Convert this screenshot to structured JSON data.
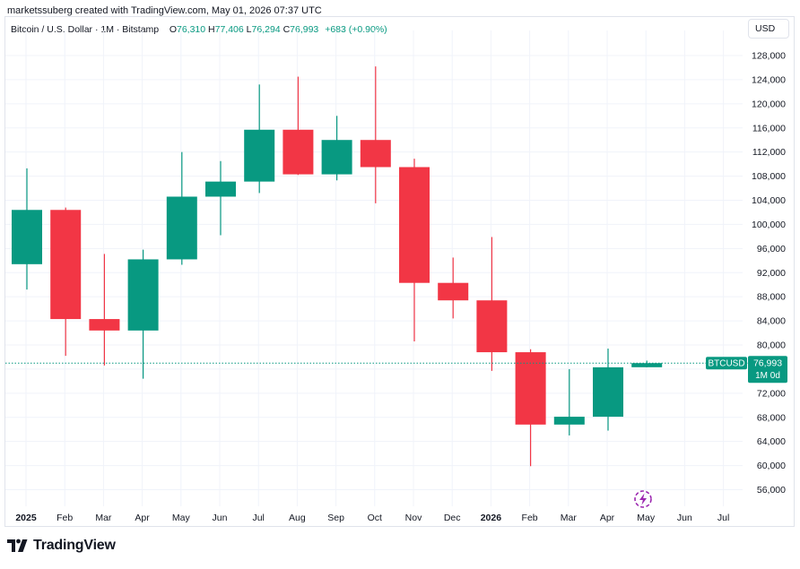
{
  "caption": "marketssuberg created with TradingView.com, May 01, 2026 07:37 UTC",
  "legend": {
    "symbol_text": "Bitcoin / U.S. Dollar · 1M · Bitstamp",
    "open_label": "O",
    "open_value": "76,310",
    "high_label": "H",
    "high_value": "77,406",
    "low_label": "L",
    "low_value": "76,294",
    "close_label": "C",
    "close_value": "76,993",
    "change": "+683 (+0.90%)"
  },
  "currency_button": "USD",
  "footer_logo_text": "TradingView",
  "colors": {
    "up": "#089981",
    "down": "#f23645",
    "grid": "#f0f3fa",
    "text": "#131722",
    "price_line": "#089981"
  },
  "chart_data": {
    "type": "candlestick",
    "symbol": "BTCUSD",
    "timeframe": "1M",
    "ylim": [
      53000,
      130000
    ],
    "y_ticks": [
      56000,
      60000,
      64000,
      68000,
      72000,
      76000,
      80000,
      84000,
      88000,
      92000,
      96000,
      100000,
      104000,
      108000,
      112000,
      116000,
      120000,
      124000,
      128000
    ],
    "y_tick_labels": [
      "56,000",
      "60,000",
      "64,000",
      "68,000",
      "72,000",
      "76,000",
      "80,000",
      "84,000",
      "88,000",
      "92,000",
      "96,000",
      "100,000",
      "104,000",
      "108,000",
      "112,000",
      "116,000",
      "120,000",
      "124,000",
      "128,000"
    ],
    "x_labels": [
      {
        "label": "2025",
        "bold": true
      },
      {
        "label": "Feb",
        "bold": false
      },
      {
        "label": "Mar",
        "bold": false
      },
      {
        "label": "Apr",
        "bold": false
      },
      {
        "label": "May",
        "bold": false
      },
      {
        "label": "Jun",
        "bold": false
      },
      {
        "label": "Jul",
        "bold": false
      },
      {
        "label": "Aug",
        "bold": false
      },
      {
        "label": "Sep",
        "bold": false
      },
      {
        "label": "Oct",
        "bold": false
      },
      {
        "label": "Nov",
        "bold": false
      },
      {
        "label": "Dec",
        "bold": false
      },
      {
        "label": "2026",
        "bold": true
      },
      {
        "label": "Feb",
        "bold": false
      },
      {
        "label": "Mar",
        "bold": false
      },
      {
        "label": "Apr",
        "bold": false
      },
      {
        "label": "May",
        "bold": false
      },
      {
        "label": "Jun",
        "bold": false
      },
      {
        "label": "Jul",
        "bold": false
      }
    ],
    "candles": [
      {
        "month": "2025-01",
        "open": 93400,
        "high": 109300,
        "low": 89200,
        "close": 102400
      },
      {
        "month": "2025-02",
        "open": 102400,
        "high": 102800,
        "low": 78200,
        "close": 84300
      },
      {
        "month": "2025-03",
        "open": 84300,
        "high": 95100,
        "low": 76600,
        "close": 82400
      },
      {
        "month": "2025-04",
        "open": 82400,
        "high": 95800,
        "low": 74400,
        "close": 94200
      },
      {
        "month": "2025-05",
        "open": 94200,
        "high": 112000,
        "low": 93300,
        "close": 104600
      },
      {
        "month": "2025-06",
        "open": 104600,
        "high": 110500,
        "low": 98200,
        "close": 107100
      },
      {
        "month": "2025-07",
        "open": 107100,
        "high": 123200,
        "low": 105200,
        "close": 115700
      },
      {
        "month": "2025-08",
        "open": 115700,
        "high": 124500,
        "low": 108200,
        "close": 108300
      },
      {
        "month": "2025-09",
        "open": 108300,
        "high": 118000,
        "low": 107300,
        "close": 114000
      },
      {
        "month": "2025-10",
        "open": 114000,
        "high": 126200,
        "low": 103500,
        "close": 109500
      },
      {
        "month": "2025-11",
        "open": 109500,
        "high": 110900,
        "low": 80600,
        "close": 90300
      },
      {
        "month": "2025-12",
        "open": 90300,
        "high": 94500,
        "low": 84400,
        "close": 87400
      },
      {
        "month": "2026-01",
        "open": 87400,
        "high": 97900,
        "low": 75700,
        "close": 78800
      },
      {
        "month": "2026-02",
        "open": 78800,
        "high": 79300,
        "low": 59900,
        "close": 66800
      },
      {
        "month": "2026-03",
        "open": 66800,
        "high": 76000,
        "low": 65000,
        "close": 68100
      },
      {
        "month": "2026-04",
        "open": 68100,
        "high": 79400,
        "low": 65800,
        "close": 76300
      },
      {
        "month": "2026-05",
        "open": 76310,
        "high": 77406,
        "low": 76294,
        "close": 76993
      }
    ],
    "last_price": {
      "symbol_label": "BTCUSD",
      "value": 76993,
      "value_label": "76,993",
      "countdown": "1M 0d"
    }
  }
}
